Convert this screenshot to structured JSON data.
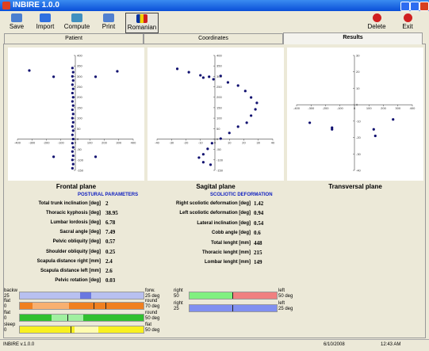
{
  "window": {
    "title": "INBIRE 1.0.0"
  },
  "toolbar": [
    "Save",
    "Import",
    "Compute",
    "Print",
    "Romanian"
  ],
  "toolbar_right": [
    "Delete",
    "Exit"
  ],
  "tabs": [
    "Patient",
    "Coordinates",
    "Results"
  ],
  "plots": [
    {
      "title": "Frontal plane",
      "xlim": [
        -400,
        400
      ],
      "ylim": [
        -150,
        400
      ],
      "xticks": [
        -400,
        -300,
        -200,
        -100,
        0,
        100,
        200,
        300,
        400
      ],
      "yticks": [
        -150,
        -100,
        -50,
        0,
        50,
        100,
        150,
        200,
        250,
        300,
        350,
        400
      ],
      "x": [
        -318,
        -150,
        140,
        290,
        -150,
        140,
        -20,
        -15,
        -20,
        -15,
        -20,
        -15,
        -20,
        -15,
        -20,
        -15,
        -20,
        -15,
        -20,
        -15,
        -20,
        -15,
        -20,
        -15,
        -20,
        -15,
        -20,
        -15,
        -20,
        -15,
        -20
      ],
      "y": [
        328,
        298,
        298,
        324,
        -85,
        -85,
        340,
        320,
        300,
        280,
        260,
        240,
        220,
        200,
        180,
        160,
        140,
        120,
        100,
        80,
        60,
        40,
        20,
        0,
        -20,
        -40,
        -60,
        -80,
        -100,
        -120,
        -140
      ]
    },
    {
      "title": "Sagital plane",
      "xlim": [
        -40,
        40
      ],
      "ylim": [
        -150,
        400
      ],
      "xticks": [
        -40,
        -30,
        -20,
        -10,
        0,
        10,
        20,
        30,
        40
      ],
      "yticks": [
        -150,
        -100,
        -50,
        0,
        50,
        100,
        150,
        200,
        250,
        300,
        350,
        400
      ],
      "x": [
        -26,
        -18,
        -10,
        -8,
        -4,
        -1,
        4,
        9,
        16,
        21,
        25,
        29,
        28,
        25,
        22,
        16,
        10,
        4,
        -2,
        -5,
        -8,
        -11,
        -8,
        -3
      ],
      "y": [
        336,
        320,
        305,
        294,
        298,
        286,
        302,
        271,
        256,
        230,
        199,
        173,
        142,
        112,
        78,
        59,
        29,
        2,
        -20,
        -47,
        -73,
        -89,
        -111,
        -123
      ]
    },
    {
      "title": "Transversal plane",
      "xlim": [
        -400,
        400
      ],
      "ylim": [
        -40,
        30
      ],
      "xticks": [
        -400,
        -300,
        -200,
        -100,
        0,
        100,
        200,
        300,
        400
      ],
      "yticks": [
        -40,
        -30,
        -20,
        -10,
        0,
        10,
        20,
        30
      ],
      "x": [
        -309,
        -155,
        -155,
        133,
        144,
        267
      ],
      "y": [
        -11,
        -14,
        -15,
        -15,
        -19,
        -9
      ]
    }
  ],
  "postural": {
    "title": "POSTURAL PARAMETERS",
    "rows": [
      {
        "label": "Total trunk inclination [deg]",
        "value": 2
      },
      {
        "label": "Thoracic kyphosis [deg]",
        "value": 38.95
      },
      {
        "label": "Lumbar lordosis [deg]",
        "value": 6.78
      },
      {
        "label": "Sacral angle [deg]",
        "value": 7.49
      },
      {
        "label": "Pelvic obliquity [deg]",
        "value": 0.57
      },
      {
        "label": "Shoulder obliquity [deg]",
        "value": 0.25
      },
      {
        "label": "Scapula distance right [mm]",
        "value": 2.4
      },
      {
        "label": "Scapula distance left [mm]",
        "value": 2.6
      },
      {
        "label": "Pelvic rotation [deg]",
        "value": 0.03
      }
    ]
  },
  "scoliotic": {
    "title": "SCOLIOTIC DEFORMATION",
    "rows": [
      {
        "label": "Right scoliotic deformation [deg]",
        "value": 1.42
      },
      {
        "label": "Left scoliotic deformation [deg]",
        "value": 0.94
      },
      {
        "label": "Lateral inclination [deg]",
        "value": 0.54
      },
      {
        "label": "Cobb angle [deg]",
        "value": 0.6
      },
      {
        "label": "Total lenght [mm]",
        "value": 448
      },
      {
        "label": "Thoracic lenght [mm]",
        "value": 215
      },
      {
        "label": "Lombar lenght [mm]",
        "value": 149
      }
    ]
  },
  "gauges": [
    {
      "left_top": "backw",
      "left_bottom": "25",
      "right_top": "forw.",
      "right_bottom": "25 deg"
    },
    {
      "left_top": "flat",
      "left_bottom": "0",
      "right_top": "round",
      "right_bottom": "70 deg"
    },
    {
      "left_top": "flat",
      "left_bottom": "0",
      "right_top": "round",
      "right_bottom": "50 deg"
    },
    {
      "left_top": "sleep",
      "left_bottom": "0",
      "right_top": "flat",
      "right_bottom": "50 deg"
    },
    {
      "left_top": "right",
      "left_bottom": "50",
      "right_top": "left",
      "right_bottom": "50 deg"
    },
    {
      "left_top": "right",
      "left_bottom": "25",
      "right_top": "left",
      "right_bottom": "25 deg"
    }
  ],
  "status": [
    "INBIRE v.1.0.0",
    "6/10/2008",
    "12:43 AM"
  ]
}
